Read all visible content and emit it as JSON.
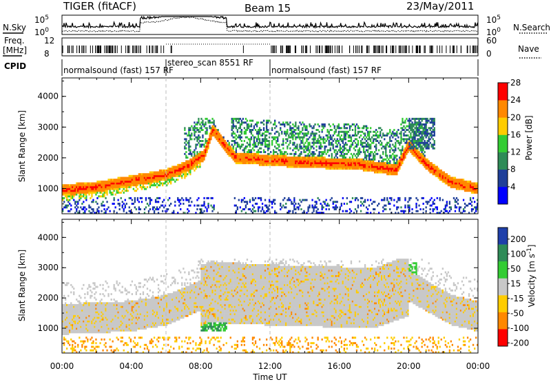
{
  "header": {
    "station": "TIGER (fitACF)",
    "beam": "Beam 15",
    "date": "23/May/2011"
  },
  "sky_panel": {
    "left_label": "N.Sky",
    "right_label": "N.Search",
    "ytick_top": "10^5",
    "ytick_bottom": "10^0",
    "rtick_top": "10^5",
    "rtick_bottom": "10^0"
  },
  "freq_panel": {
    "label_line1": "Freq.",
    "label_line2": "[MHz]",
    "ytick_top": "12",
    "ytick_bottom": "8",
    "right_label": "Nave",
    "rtick_top": "60",
    "rtick_bottom": "0"
  },
  "cpid": {
    "label": "CPID",
    "segments": [
      {
        "label": "normalsound (fast) 157 RF",
        "start_h": 0.0,
        "end_h": 6.0
      },
      {
        "label": "stereo_scan 8551 RF",
        "start_h": 6.0,
        "end_h": 12.0
      },
      {
        "label": "normalsound (fast) 157 RF",
        "start_h": 12.0,
        "end_h": 24.0
      }
    ]
  },
  "x_axis": {
    "label": "Time UT",
    "tick_labels": [
      "00:00",
      "04:00",
      "08:00",
      "12:00",
      "16:00",
      "20:00",
      "00:00"
    ],
    "range_h": [
      0,
      24
    ]
  },
  "chart_data": [
    {
      "type": "heatmap",
      "panel": "power",
      "ylabel": "Slant Range [km]",
      "ylim": [
        180,
        4600
      ],
      "y_ticks": [
        "1000",
        "2000",
        "3000",
        "4000"
      ],
      "colorbar": {
        "label": "Power [dB]",
        "tick_labels": [
          "4",
          "8",
          "12",
          "16",
          "20",
          "24",
          "28"
        ],
        "range": [
          0,
          32
        ],
        "colors": [
          "#0000ff",
          "#1f3f99",
          "#2e8b57",
          "#33cc33",
          "#ffcc00",
          "#ff8800",
          "#ff0000"
        ]
      },
      "echo_bands": [
        {
          "name": "",
          "time_h": [
            0,
            2,
            4,
            6,
            7.3,
            8.2,
            8.7,
            10,
            14,
            17,
            19.3,
            20,
            21.2,
            22.5,
            24
          ],
          "range_km": [
            950,
            1050,
            1250,
            1450,
            1750,
            2100,
            2900,
            2000,
            1850,
            1800,
            1600,
            2400,
            1700,
            1200,
            1000
          ],
          "power_db": 27
        }
      ]
    },
    {
      "type": "heatmap",
      "panel": "velocity",
      "ylabel": "Slant Range [km]",
      "ylim": [
        180,
        4600
      ],
      "y_ticks": [
        "1000",
        "2000",
        "3000",
        "4000"
      ],
      "colorbar": {
        "label": "Velocity [m s^-1]",
        "tick_labels": [
          "200",
          "100",
          "50",
          "15",
          "-15",
          "-50",
          "-100",
          "-200"
        ],
        "colors": [
          "#1f3faa",
          "#2e8b57",
          "#33cc33",
          "#c8c8c8",
          "#ffcc00",
          "#ff8800",
          "#ff0000"
        ]
      },
      "echo_bands": [
        {
          "name": "",
          "time_h": [
            0,
            4,
            6,
            8.5,
            12,
            18,
            20,
            22.5,
            24
          ],
          "range_km": [
            1300,
            1400,
            1600,
            2200,
            2100,
            2000,
            2400,
            1600,
            1400
          ],
          "velocity_ms": 0
        }
      ]
    }
  ]
}
